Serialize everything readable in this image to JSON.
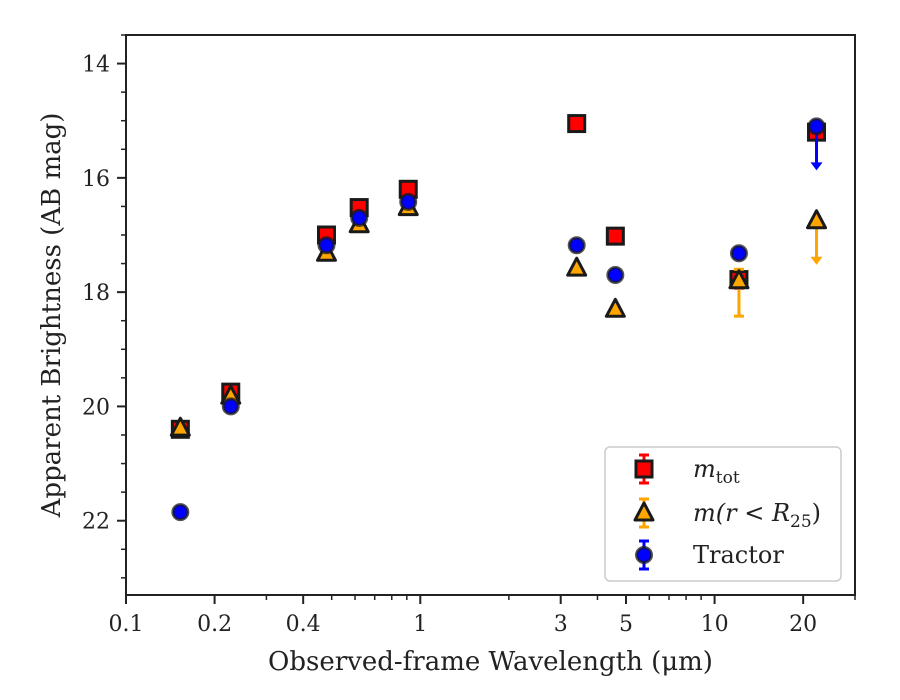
{
  "chart_data": {
    "type": "scatter",
    "xlabel": "Observed-frame Wavelength (μm)",
    "ylabel": "Apparent Brightness (AB mag)",
    "xscale": "log",
    "yaxis_inverted": true,
    "xlim": [
      0.1,
      30
    ],
    "ylim": [
      23.3,
      13.5
    ],
    "x_ticks": [
      {
        "value": 0.1,
        "label": "0.1"
      },
      {
        "value": 0.2,
        "label": "0.2"
      },
      {
        "value": 0.4,
        "label": "0.4"
      },
      {
        "value": 1,
        "label": "1"
      },
      {
        "value": 3,
        "label": "3"
      },
      {
        "value": 5,
        "label": "5"
      },
      {
        "value": 10,
        "label": "10"
      },
      {
        "value": 20,
        "label": "20"
      }
    ],
    "y_ticks": [
      {
        "value": 14,
        "label": "14"
      },
      {
        "value": 16,
        "label": "16"
      },
      {
        "value": 18,
        "label": "18"
      },
      {
        "value": 20,
        "label": "20"
      },
      {
        "value": 22,
        "label": "22"
      }
    ],
    "grid": false,
    "legend_position": "lower-right",
    "series": [
      {
        "name": "m_tot",
        "legend_main": "m",
        "legend_sub": "tot",
        "marker": "square",
        "color": "#ff0000",
        "errcolor": "#ff0000",
        "points": [
          {
            "x": 0.153,
            "y": 20.4
          },
          {
            "x": 0.227,
            "y": 19.75
          },
          {
            "x": 0.48,
            "y": 17.0
          },
          {
            "x": 0.62,
            "y": 16.52
          },
          {
            "x": 0.91,
            "y": 16.2
          },
          {
            "x": 3.4,
            "y": 15.05
          },
          {
            "x": 4.6,
            "y": 17.02
          },
          {
            "x": 12.1,
            "y": 17.78,
            "err": 0.15
          },
          {
            "x": 22.2,
            "y": 15.2
          }
        ]
      },
      {
        "name": "m(r < R_25)",
        "legend_main": "m(r < R",
        "legend_sub": "25",
        "legend_end": ")",
        "marker": "triangle",
        "color": "#ffa500",
        "errcolor": "#ffa500",
        "points": [
          {
            "x": 0.153,
            "y": 20.38
          },
          {
            "x": 0.227,
            "y": 19.82
          },
          {
            "x": 0.48,
            "y": 17.32
          },
          {
            "x": 0.62,
            "y": 16.82
          },
          {
            "x": 0.91,
            "y": 16.52
          },
          {
            "x": 3.4,
            "y": 17.58
          },
          {
            "x": 4.6,
            "y": 18.3
          },
          {
            "x": 12.1,
            "y": 17.8,
            "err_low": 0.62,
            "err_high": 0.2
          },
          {
            "x": 22.2,
            "y": 16.75,
            "upper_limit": true
          }
        ]
      },
      {
        "name": "Tractor",
        "legend_main": "Tractor",
        "marker": "circle",
        "color": "#0000ff",
        "errcolor": "#0000ff",
        "points": [
          {
            "x": 0.153,
            "y": 21.85
          },
          {
            "x": 0.227,
            "y": 20.0
          },
          {
            "x": 0.48,
            "y": 17.18
          },
          {
            "x": 0.62,
            "y": 16.7
          },
          {
            "x": 0.91,
            "y": 16.42
          },
          {
            "x": 3.4,
            "y": 17.18
          },
          {
            "x": 4.6,
            "y": 17.7
          },
          {
            "x": 12.1,
            "y": 17.32
          },
          {
            "x": 22.2,
            "y": 15.1,
            "upper_limit": true
          }
        ]
      }
    ]
  }
}
